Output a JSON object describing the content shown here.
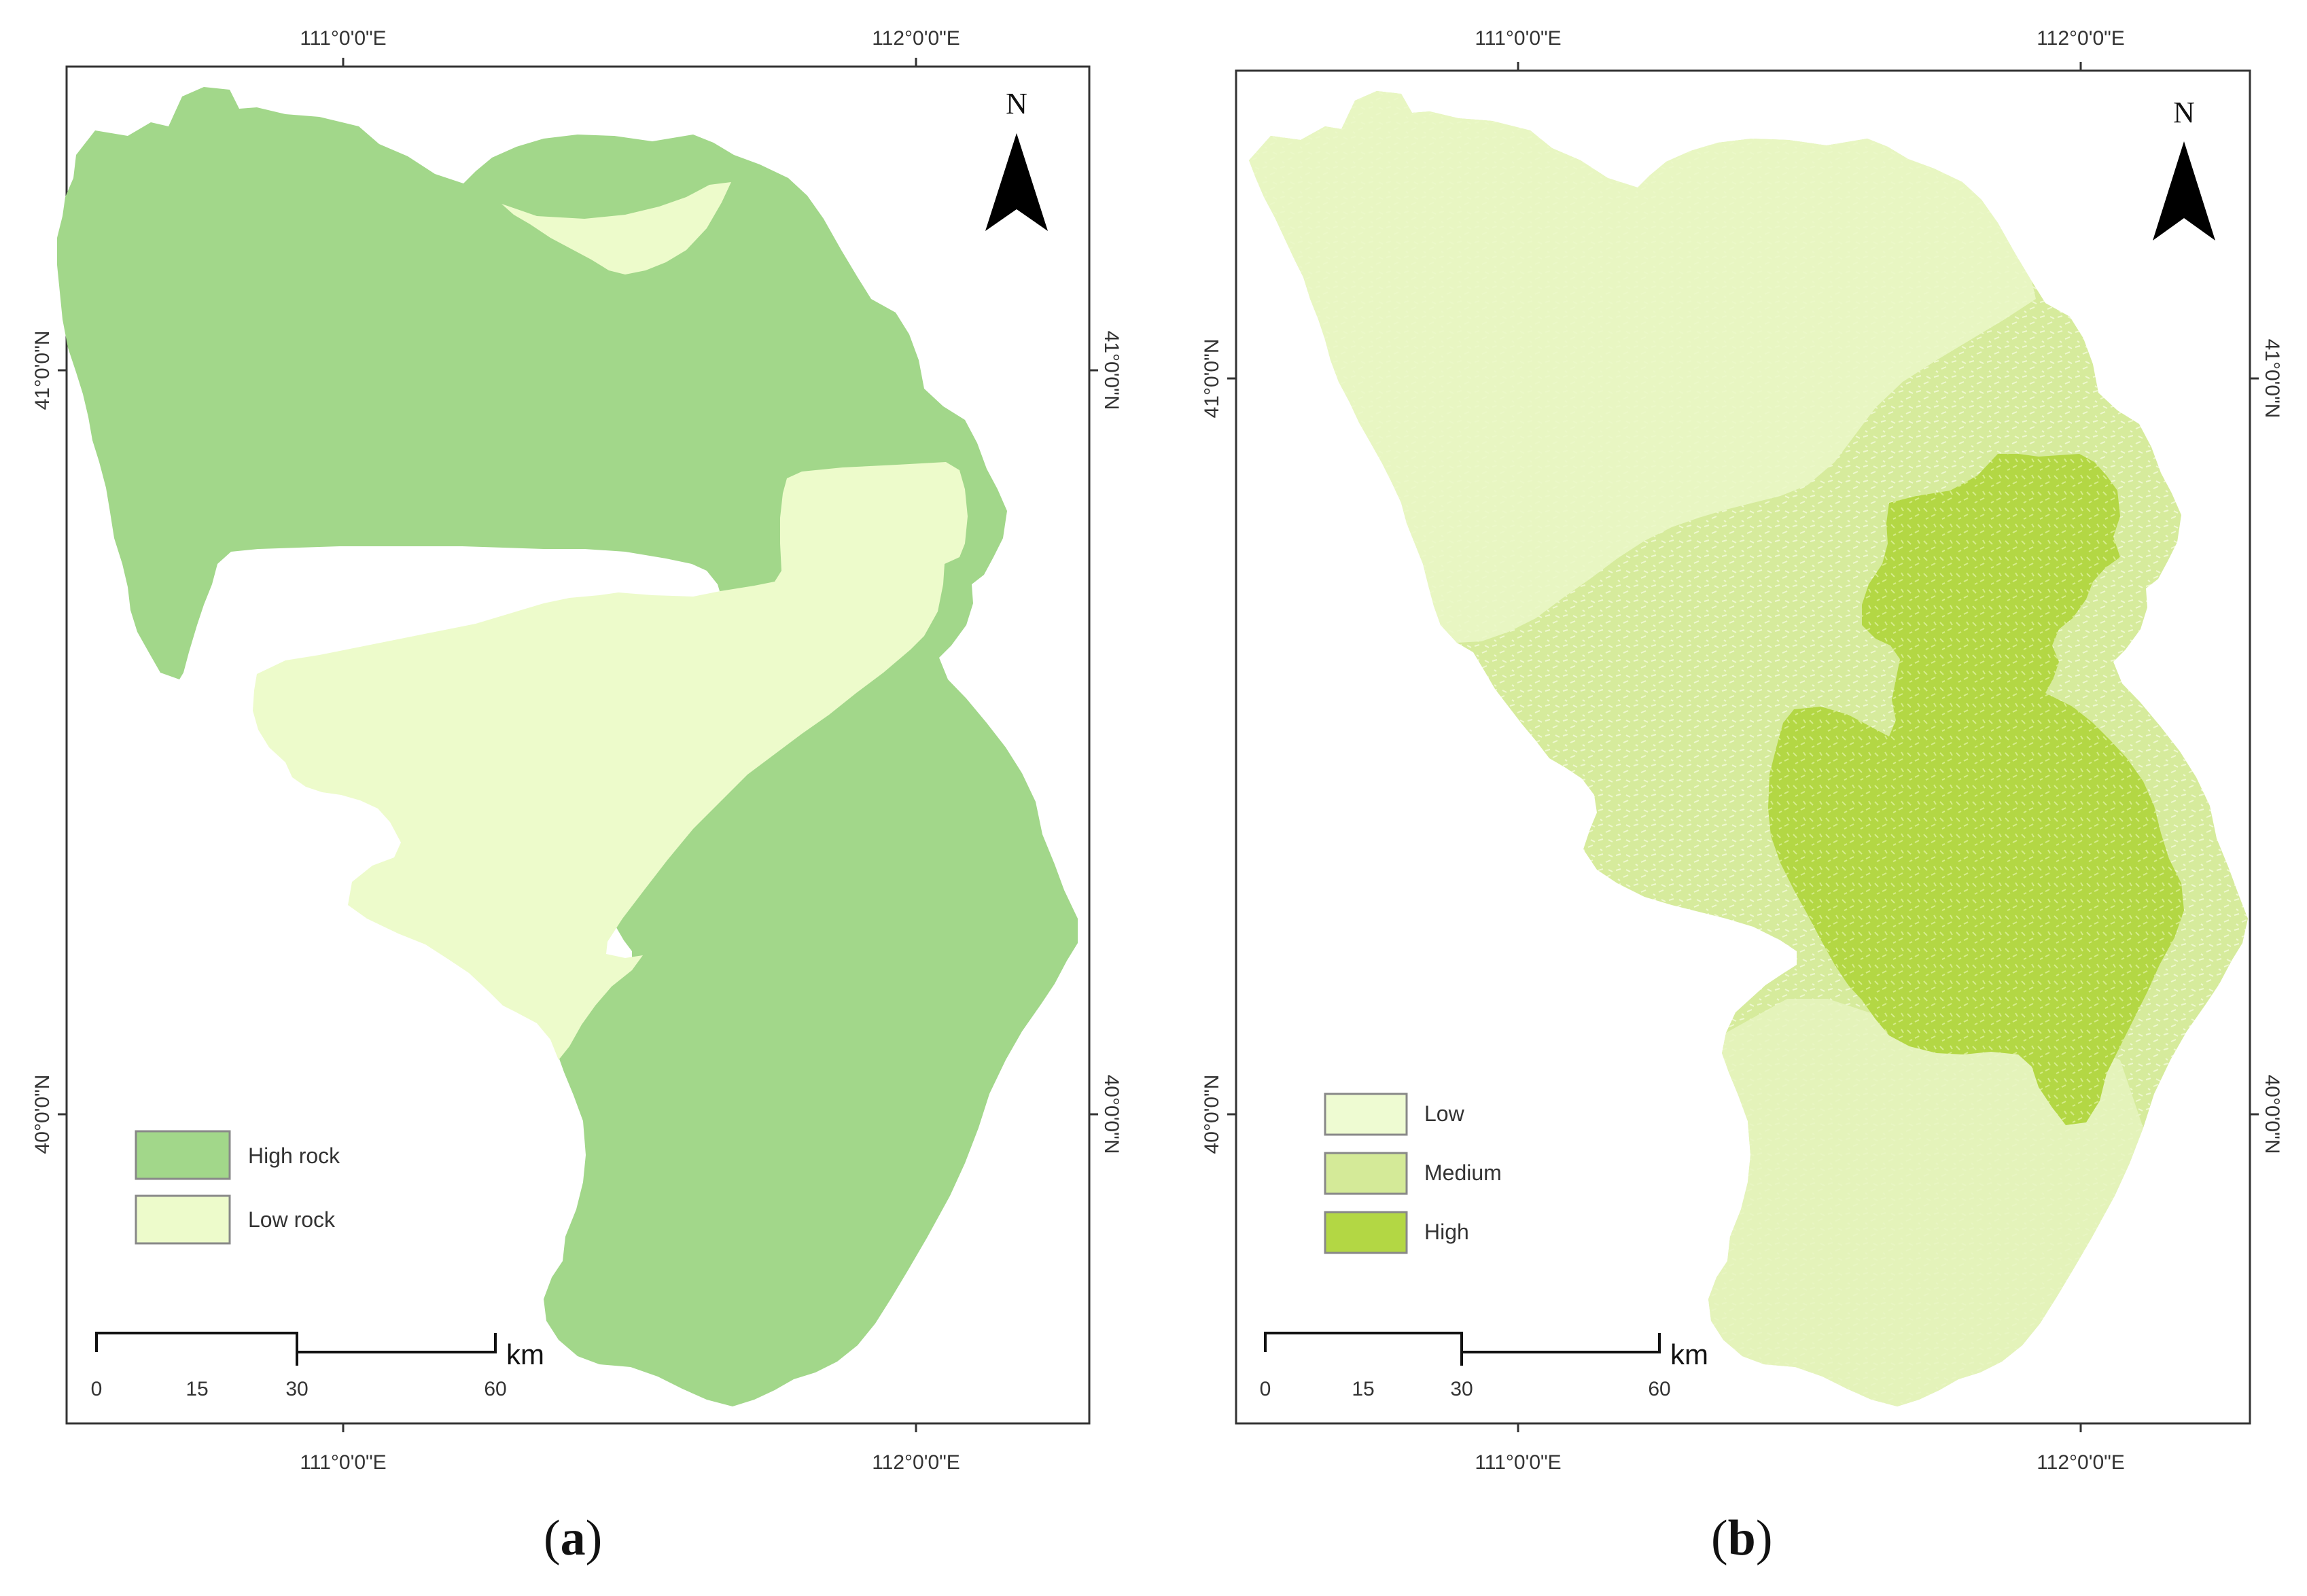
{
  "panels": [
    {
      "caption_letter": "a",
      "coords": {
        "top_lon_1": "111°0'0\"E",
        "top_lon_2": "112°0'0\"E",
        "bottom_lon_1": "111°0'0\"E",
        "bottom_lon_2": "112°0'0\"E",
        "left_lat_1": "41°0'0\"N",
        "left_lat_2": "40°0'0\"N",
        "right_lat_1": "41°0'0\"N",
        "right_lat_2": "40°0'0\"N"
      },
      "north": "N",
      "legend": [
        {
          "label": "High rock",
          "color": "#a2d78a"
        },
        {
          "label": "Low rock",
          "color": "#edfbcb"
        }
      ],
      "scale": {
        "labels": [
          "0",
          "15",
          "30",
          "60"
        ],
        "unit": "km"
      }
    },
    {
      "caption_letter": "b",
      "coords": {
        "top_lon_1": "111°0'0\"E",
        "top_lon_2": "112°0'0\"E",
        "bottom_lon_1": "111°0'0\"E",
        "bottom_lon_2": "112°0'0\"E",
        "left_lat_1": "41°0'0\"N",
        "left_lat_2": "40°0'0\"N",
        "right_lat_1": "41°0'0\"N",
        "right_lat_2": "40°0'0\"N"
      },
      "north": "N",
      "legend": [
        {
          "label": "Low",
          "color": "#eefbd2"
        },
        {
          "label": "Medium",
          "color": "#d4ea98"
        },
        {
          "label": "High",
          "color": "#b3d744"
        }
      ],
      "scale": {
        "labels": [
          "0",
          "15",
          "30",
          "60"
        ],
        "unit": "km"
      }
    }
  ]
}
